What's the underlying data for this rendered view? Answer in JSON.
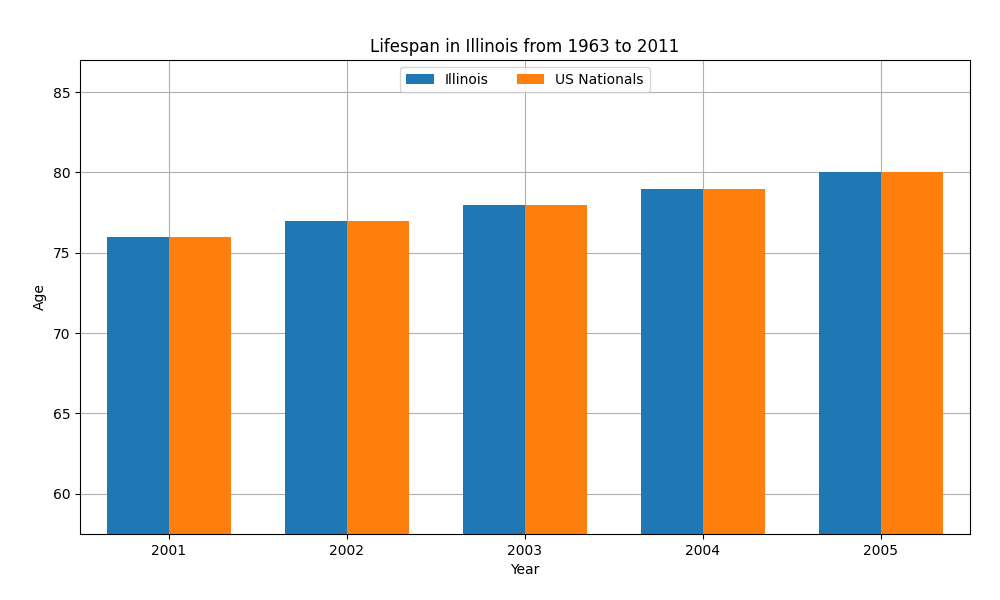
{
  "chart_data": {
    "type": "bar",
    "title": "Lifespan in Illinois from 1963 to 2011",
    "xlabel": "Year",
    "ylabel": "Age",
    "categories": [
      "2001",
      "2002",
      "2003",
      "2004",
      "2005"
    ],
    "series": [
      {
        "name": "Illinois",
        "values": [
          76.0,
          77.0,
          78.0,
          79.0,
          80.0
        ]
      },
      {
        "name": "US Nationals",
        "values": [
          76.0,
          77.0,
          78.0,
          79.0,
          80.0
        ]
      }
    ],
    "ylim": [
      57.5,
      87
    ],
    "yticks": [
      60,
      65,
      70,
      75,
      80,
      85
    ],
    "grid": true,
    "legend": "upper center"
  }
}
